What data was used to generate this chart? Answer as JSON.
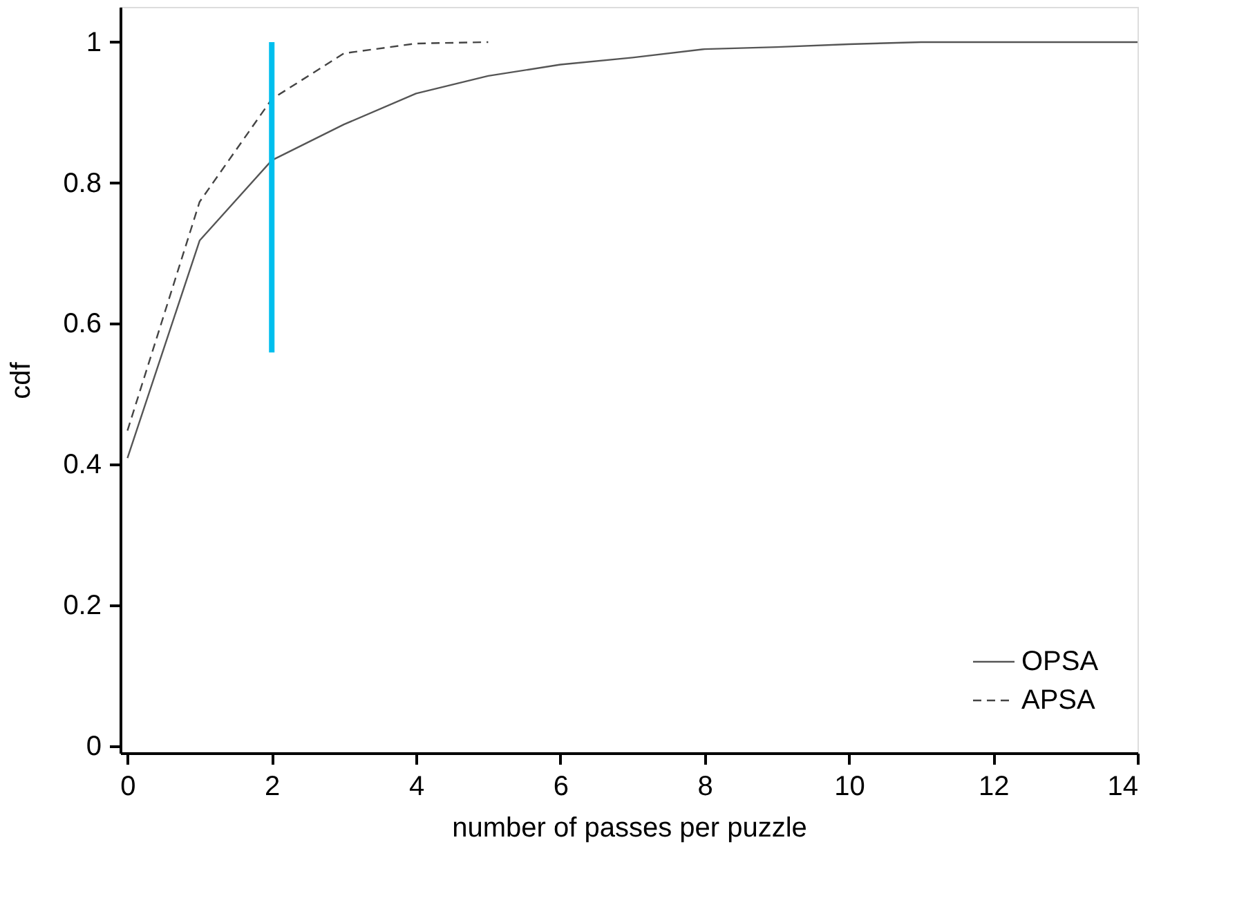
{
  "chart_data": {
    "type": "line",
    "xlabel": "number of passes per puzzle",
    "ylabel": "cdf",
    "xlim": [
      -0.1,
      14
    ],
    "ylim": [
      -0.01,
      1.05
    ],
    "xticks": [
      0,
      2,
      4,
      6,
      8,
      10,
      12,
      14
    ],
    "yticks": [
      0,
      0.2,
      0.4,
      0.6,
      0.8,
      1
    ],
    "grid": false,
    "legend": "bottom right",
    "marker": "none",
    "series": [
      {
        "name": "OPSA",
        "color": "#555555",
        "line_style": "solid",
        "x": [
          0,
          1,
          2,
          3,
          4,
          5,
          6,
          7,
          8,
          9,
          10,
          11,
          12,
          13,
          14
        ],
        "values": [
          0.409,
          0.718,
          0.832,
          0.883,
          0.927,
          0.952,
          0.968,
          0.978,
          0.99,
          0.993,
          0.997,
          1.0,
          1.0,
          1.0,
          1.0
        ]
      },
      {
        "name": "APSA",
        "color": "#444444",
        "line_style": "dashed",
        "x": [
          0,
          1,
          2,
          3,
          4,
          5
        ],
        "values": [
          0.448,
          0.773,
          0.919,
          0.984,
          0.998,
          1.0
        ]
      },
      {
        "color": "#00bfee",
        "line_style": "solid",
        "x": [
          2,
          2
        ],
        "values": [
          0.559,
          1.0
        ]
      }
    ]
  }
}
